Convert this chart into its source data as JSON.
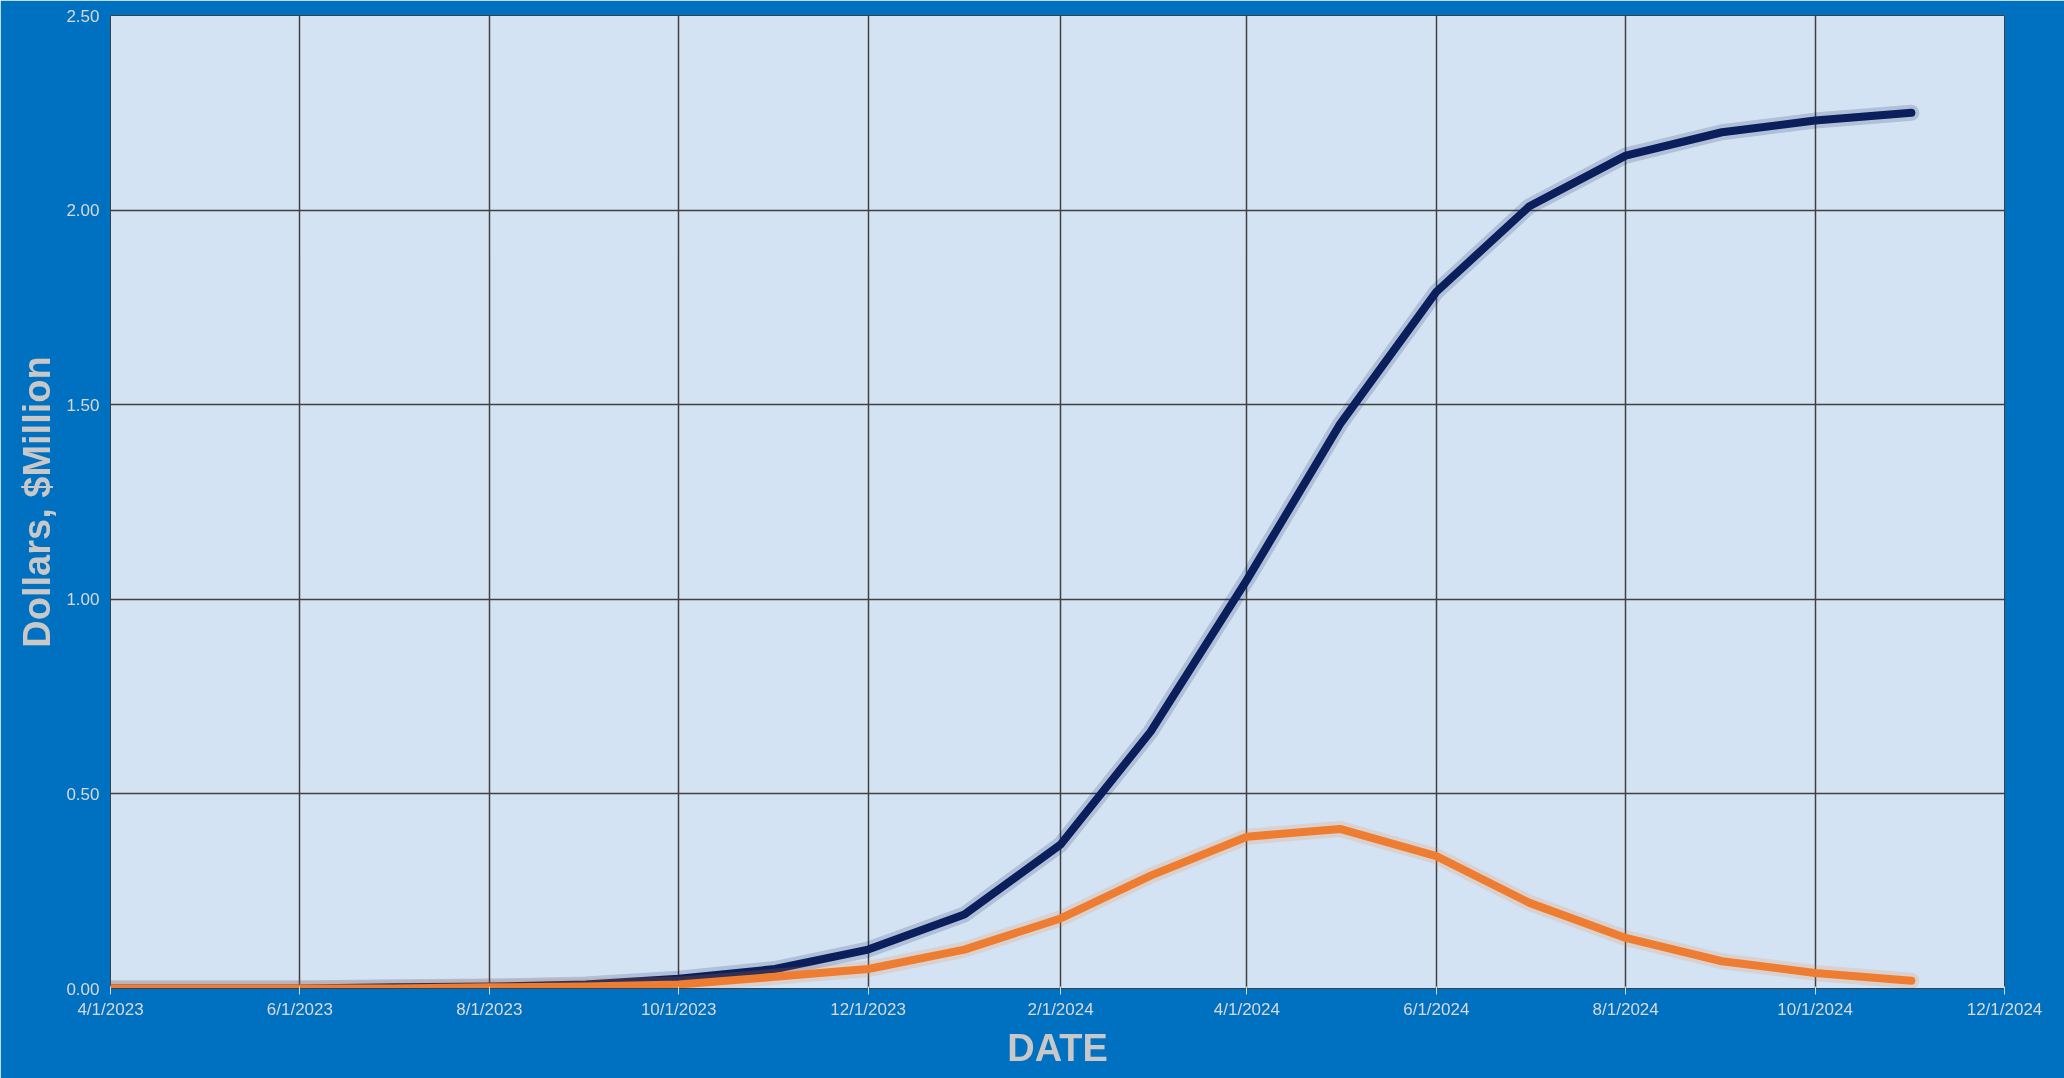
{
  "chart_data": {
    "type": "line",
    "xlabel": "DATE",
    "ylabel": "Dollars, $Million",
    "x": [
      "2023-04-01",
      "2023-05-01",
      "2023-06-01",
      "2023-07-01",
      "2023-08-01",
      "2023-09-01",
      "2023-10-01",
      "2023-11-01",
      "2023-12-01",
      "2024-01-01",
      "2024-02-01",
      "2024-03-01",
      "2024-04-01",
      "2024-05-01",
      "2024-06-01",
      "2024-07-01",
      "2024-08-01",
      "2024-09-01",
      "2024-10-01",
      "2024-11-01"
    ],
    "series": [
      {
        "color": "#0b1f5c",
        "values": [
          0,
          0,
          0,
          0.003,
          0.005,
          0.01,
          0.025,
          0.05,
          0.1,
          0.19,
          0.37,
          0.66,
          1.05,
          1.45,
          1.79,
          2.01,
          2.14,
          2.2,
          2.23,
          2.25
        ]
      },
      {
        "color": "#ee7d31",
        "values": [
          0,
          0,
          0,
          0,
          0.003,
          0.005,
          0.01,
          0.03,
          0.05,
          0.1,
          0.18,
          0.29,
          0.39,
          0.41,
          0.34,
          0.22,
          0.13,
          0.07,
          0.04,
          0.02
        ]
      }
    ],
    "xlim": [
      "2023-04-01",
      "2024-12-01"
    ],
    "xticks": [
      {
        "value": "2023-04-01",
        "label": "4/1/2023"
      },
      {
        "value": "2023-06-01",
        "label": "6/1/2023"
      },
      {
        "value": "2023-08-01",
        "label": "8/1/2023"
      },
      {
        "value": "2023-10-01",
        "label": "10/1/2023"
      },
      {
        "value": "2023-12-01",
        "label": "12/1/2023"
      },
      {
        "value": "2024-02-01",
        "label": "2/1/2024"
      },
      {
        "value": "2024-04-01",
        "label": "4/1/2024"
      },
      {
        "value": "2024-06-01",
        "label": "6/1/2024"
      },
      {
        "value": "2024-08-01",
        "label": "8/1/2024"
      },
      {
        "value": "2024-10-01",
        "label": "10/1/2024"
      },
      {
        "value": "2024-12-01",
        "label": "12/1/2024"
      }
    ],
    "ylim": [
      0,
      2.5
    ],
    "yticks": [
      {
        "value": 0,
        "label": "0.00"
      },
      {
        "value": 0.5,
        "label": "0.50"
      },
      {
        "value": 1,
        "label": "1.00"
      },
      {
        "value": 1.5,
        "label": "1.50"
      },
      {
        "value": 2,
        "label": "2.00"
      },
      {
        "value": 2.5,
        "label": "2.50"
      }
    ],
    "grid": true,
    "line_style": "solid"
  }
}
